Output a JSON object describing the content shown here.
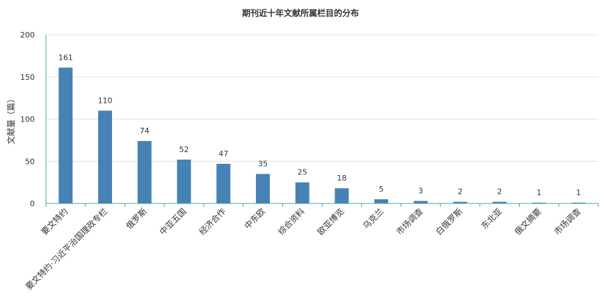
{
  "chart_data": {
    "type": "bar",
    "title": "期刊近十年文献所属栏目的分布",
    "xlabel": "",
    "ylabel": "文献量（篇）",
    "ylim": [
      0,
      200
    ],
    "yticks": [
      0,
      50,
      100,
      150,
      200
    ],
    "grid": true,
    "categories": [
      "要文特约",
      "要文特约·习近平治国理政专栏",
      "俄罗斯",
      "中亚五国",
      "经济合作",
      "中东欧",
      "综合资料",
      "欧亚博览",
      "乌克兰",
      "市场调查",
      "白俄罗斯",
      "东北亚",
      "俄文摘要",
      "市场调查"
    ],
    "values": [
      161,
      110,
      74,
      52,
      47,
      35,
      25,
      18,
      5,
      3,
      2,
      2,
      1,
      1
    ],
    "colors": {
      "bar": "#4682b4",
      "axis": "#4aa3a3",
      "grid": "#e0e0e0",
      "text": "#333333"
    }
  }
}
